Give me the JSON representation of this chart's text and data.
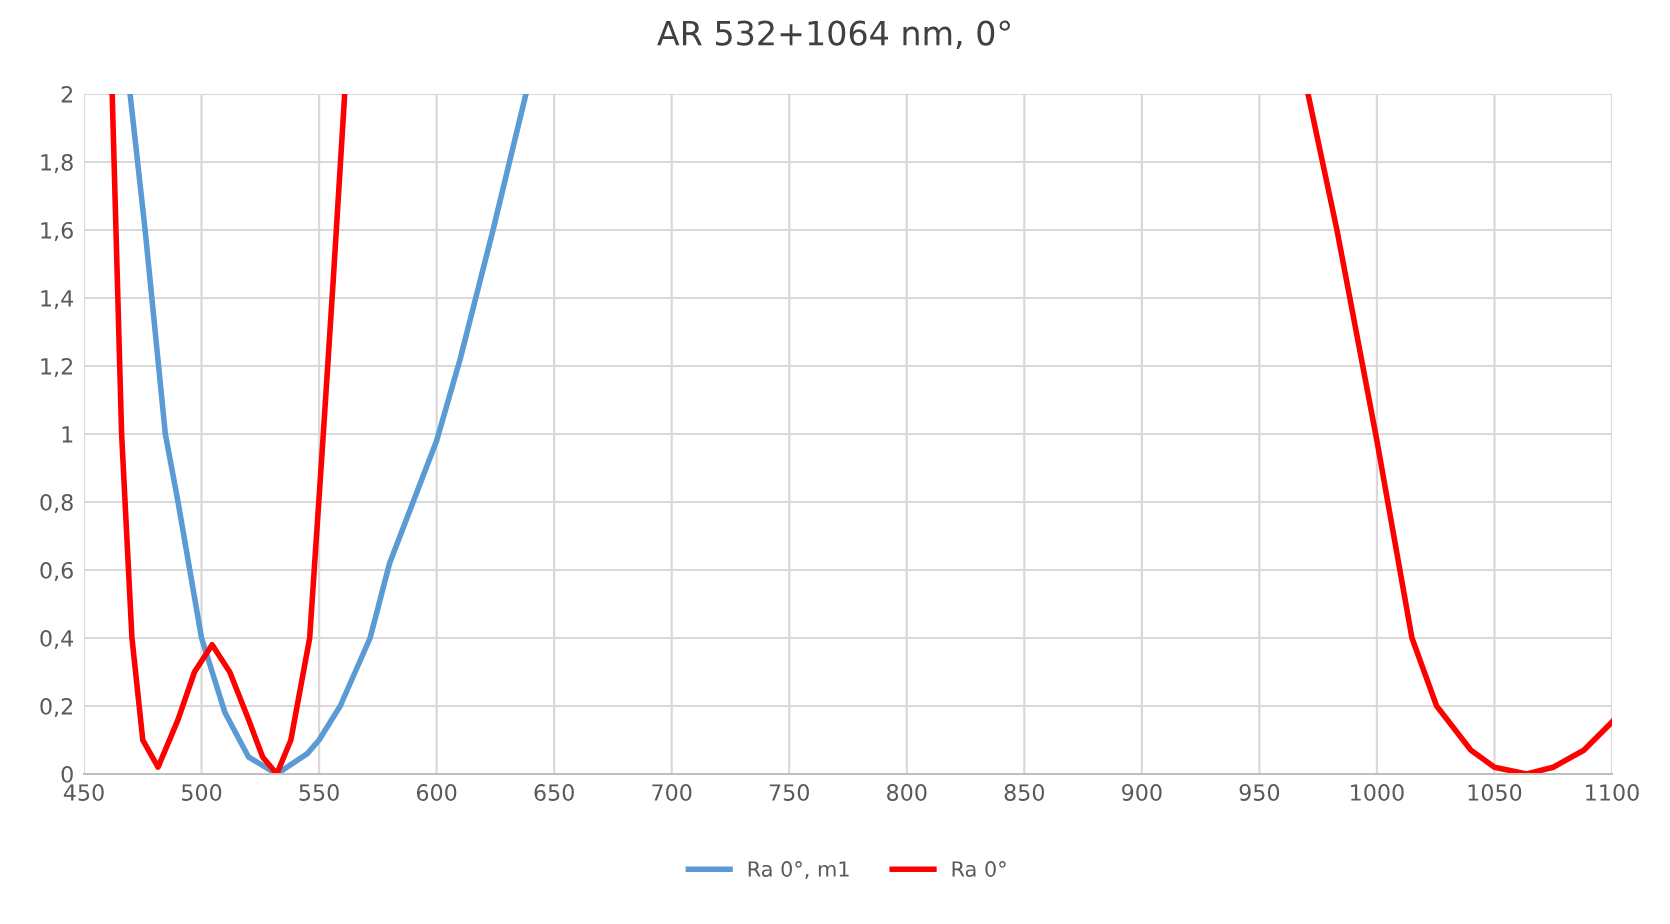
{
  "chart_data": {
    "type": "line",
    "title": "AR 532+1064 nm, 0°",
    "series": [
      {
        "name": "Ra 0°, m1",
        "color": "#5b9bd5",
        "x": [
          469.6,
          476,
          484.6,
          490,
          500,
          510,
          520,
          532,
          545,
          550,
          559,
          571.7,
          580,
          590,
          600,
          610,
          624,
          638
        ],
        "values": [
          2,
          1.6,
          1.0,
          0.8,
          0.4,
          0.18,
          0.05,
          0,
          0.06,
          0.1,
          0.2,
          0.4,
          0.62,
          0.8,
          0.98,
          1.22,
          1.6,
          2
        ]
      },
      {
        "name": "Ra 0°",
        "color": "#ff0000",
        "x": [
          462,
          466,
          470.4,
          475,
          481.5,
          490,
          497,
          504.5,
          512,
          520,
          526,
          532,
          538,
          546,
          551.8,
          556,
          560.9
        ],
        "values": [
          2,
          1,
          0.4,
          0.1,
          0.02,
          0.16,
          0.3,
          0.38,
          0.3,
          0.16,
          0.05,
          0,
          0.1,
          0.4,
          1,
          1.45,
          2
        ]
      },
      {
        "color": "#ff0000",
        "x": [
          970.7,
          983,
          1000,
          1014.9,
          1025.4,
          1040,
          1050,
          1063.7,
          1075,
          1088,
          1100
        ],
        "values": [
          2,
          1.6,
          0.98,
          0.4,
          0.2,
          0.07,
          0.02,
          0,
          0.02,
          0.07,
          0.153
        ]
      }
    ],
    "xlim": [
      450,
      1100
    ],
    "xticks": [
      450,
      500,
      550,
      600,
      650,
      700,
      750,
      800,
      850,
      900,
      950,
      1000,
      1050,
      1100
    ],
    "ylim": [
      0,
      2
    ],
    "yticks": [
      0,
      {
        "value": 0.2,
        "label": "0,2"
      },
      {
        "value": 0.4,
        "label": "0,4"
      },
      {
        "value": 0.6,
        "label": "0,6"
      },
      {
        "value": 0.8,
        "label": "0,8"
      },
      1,
      {
        "value": 1.2,
        "label": "1,2"
      },
      {
        "value": 1.4,
        "label": "1,4"
      },
      {
        "value": 1.6,
        "label": "1,6"
      },
      {
        "value": 1.8,
        "label": "1,8"
      },
      2
    ],
    "grid": true,
    "legend": "bottom",
    "marker": "none",
    "line_style": "solid"
  }
}
